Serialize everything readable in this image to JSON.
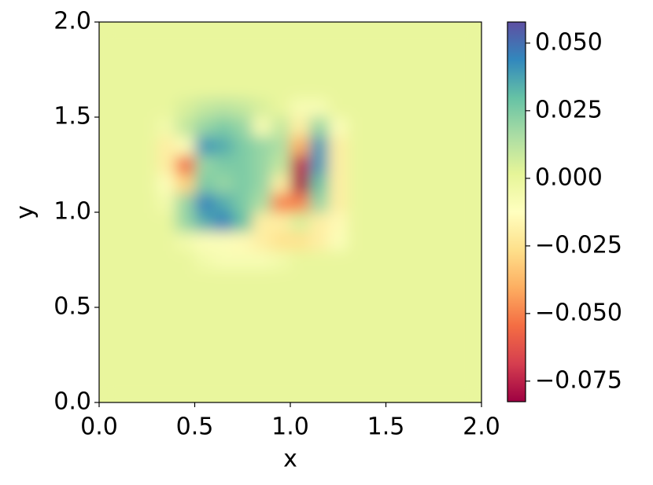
{
  "chart_data": {
    "type": "heatmap",
    "xlabel": "x",
    "ylabel": "y",
    "xlim": [
      0,
      2
    ],
    "ylim": [
      0,
      2
    ],
    "xticks": [
      {
        "value": 0,
        "label": "0.0"
      },
      0.5,
      {
        "value": 1,
        "label": "1.0"
      },
      1.5,
      {
        "value": 2,
        "label": "2.0"
      }
    ],
    "yticks": [
      {
        "value": 0,
        "label": "0.0"
      },
      0.5,
      {
        "value": 1,
        "label": "1.0"
      },
      1.5,
      {
        "value": 2,
        "label": "2.0"
      }
    ],
    "colormap": [
      "#9e0142",
      "#d53e4f",
      "#f46d43",
      "#fdae61",
      "#fee08b",
      "#ffffbf",
      "#e6f598",
      "#abdda4",
      "#66c2a5",
      "#3288bd",
      "#5e4fa2"
    ],
    "clim": [
      -0.0826,
      0.0578
    ],
    "cticks": [
      {
        "value": 0.05,
        "label": "0.050"
      },
      {
        "value": 0.025,
        "label": "0.025"
      },
      {
        "value": 0,
        "label": "0.000"
      },
      {
        "value": -0.025,
        "label": "−0.025"
      },
      {
        "value": -0.05,
        "label": "−0.050"
      },
      {
        "value": -0.075,
        "label": "−0.075"
      }
    ],
    "x": [
      0.05,
      0.15,
      0.25,
      0.35,
      0.45,
      0.55,
      0.65,
      0.75,
      0.85,
      0.95,
      1.05,
      1.15,
      1.25,
      1.35,
      1.45,
      1.55,
      1.65,
      1.75,
      1.85,
      1.95
    ],
    "y": [
      0.05,
      0.15,
      0.25,
      0.35,
      0.45,
      0.55,
      0.65,
      0.75,
      0.85,
      0.95,
      1.05,
      1.15,
      1.25,
      1.35,
      1.45,
      1.55,
      1.65,
      1.75,
      1.85,
      1.95
    ],
    "z": [
      [
        0,
        0,
        0,
        0,
        0,
        0,
        0,
        0,
        0,
        0,
        0,
        0,
        0,
        0,
        0,
        0,
        0,
        0,
        0,
        0
      ],
      [
        0,
        0,
        0,
        0,
        0,
        0,
        0,
        0,
        0,
        0,
        0,
        0,
        0,
        0,
        0,
        0,
        0,
        0,
        0,
        0
      ],
      [
        0,
        0,
        0,
        0,
        0,
        0,
        0,
        0,
        0,
        0,
        0,
        0,
        0,
        0,
        0,
        0,
        0,
        0,
        0,
        0
      ],
      [
        0,
        0,
        0,
        0,
        0,
        0,
        0,
        0,
        0,
        0,
        0,
        0,
        0,
        0,
        0,
        0,
        0,
        0,
        0,
        0
      ],
      [
        0,
        0,
        0,
        0,
        0,
        0,
        0,
        0,
        0,
        0,
        0,
        0,
        0,
        0,
        0,
        0,
        0,
        0,
        0,
        0
      ],
      [
        0,
        0,
        0,
        0,
        0,
        0,
        0,
        0,
        0,
        0,
        0,
        0,
        0,
        0,
        0,
        0,
        0,
        0,
        0,
        0
      ],
      [
        0,
        0,
        0,
        0,
        0,
        0,
        0,
        0,
        0,
        0,
        0,
        0,
        0,
        0,
        0,
        0,
        0,
        0,
        0,
        0
      ],
      [
        0,
        0,
        0,
        0,
        0,
        -0.005,
        -0.008,
        -0.008,
        -0.008,
        -0.005,
        0,
        0,
        0,
        0,
        0,
        0,
        0,
        0,
        0,
        0
      ],
      [
        0,
        0,
        0,
        0,
        -0.005,
        -0.01,
        -0.01,
        -0.015,
        -0.02,
        -0.025,
        -0.025,
        -0.02,
        -0.01,
        0,
        0,
        0,
        0,
        0,
        0,
        0
      ],
      [
        0,
        0,
        0,
        0,
        0.02,
        0.035,
        0.045,
        0.03,
        -0.02,
        -0.02,
        0.005,
        -0.02,
        -0.015,
        0,
        0,
        0,
        0,
        0,
        0,
        0
      ],
      [
        0,
        0,
        0,
        -0.005,
        0.02,
        0.045,
        0.035,
        0.025,
        0.015,
        -0.05,
        -0.05,
        0.02,
        -0.02,
        0,
        0,
        0,
        0,
        0,
        0,
        0
      ],
      [
        0,
        0,
        0,
        -0.01,
        -0.03,
        0.025,
        0.02,
        0.025,
        0.02,
        -0.02,
        -0.08,
        0.03,
        -0.02,
        0,
        0,
        0,
        0,
        0,
        0,
        0
      ],
      [
        0,
        0,
        0,
        -0.02,
        -0.055,
        0.02,
        0.025,
        0.025,
        0.02,
        0.01,
        -0.075,
        0.04,
        -0.02,
        0,
        0,
        0,
        0,
        0,
        0,
        0
      ],
      [
        0,
        0,
        0,
        -0.02,
        -0.01,
        0.04,
        0.035,
        0.025,
        0.02,
        0.015,
        -0.04,
        0.04,
        -0.02,
        0,
        0,
        0,
        0,
        0,
        0,
        0
      ],
      [
        0,
        0,
        0,
        -0.005,
        0.01,
        0.02,
        0.025,
        0.02,
        -0.008,
        0.01,
        -0.02,
        0.02,
        -0.01,
        0,
        0,
        0,
        0,
        0,
        0,
        0
      ],
      [
        0,
        0,
        0,
        0,
        0.005,
        0.01,
        0.012,
        0.01,
        0.005,
        0,
        -0.008,
        -0.008,
        0,
        0,
        0,
        0,
        0,
        0,
        0,
        0
      ],
      [
        0,
        0,
        0,
        0,
        0,
        0,
        0,
        0,
        0,
        0,
        0,
        0,
        0,
        0,
        0,
        0,
        0,
        0,
        0,
        0
      ],
      [
        0,
        0,
        0,
        0,
        0,
        0,
        0,
        0,
        0,
        0,
        0,
        0,
        0,
        0,
        0,
        0,
        0,
        0,
        0,
        0
      ],
      [
        0,
        0,
        0,
        0,
        0,
        0,
        0,
        0,
        0,
        0,
        0,
        0,
        0,
        0,
        0,
        0,
        0,
        0,
        0,
        0
      ],
      [
        0,
        0,
        0,
        0,
        0,
        0,
        0,
        0,
        0,
        0,
        0,
        0,
        0,
        0,
        0,
        0,
        0,
        0,
        0,
        0
      ]
    ]
  }
}
